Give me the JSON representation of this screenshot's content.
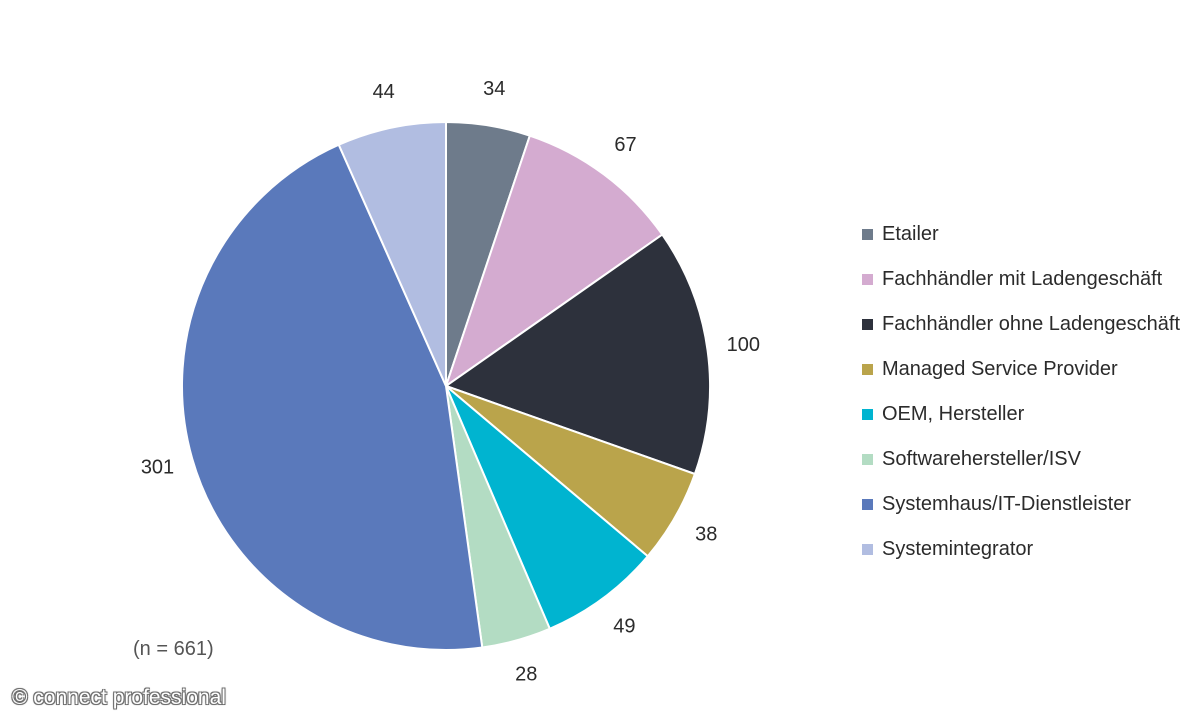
{
  "chart_data": {
    "type": "pie",
    "title": "",
    "categories": [
      "Etailer",
      "Fachhändler mit Ladengeschäft",
      "Fachhändler ohne Ladengeschäft",
      "Managed Service Provider",
      "OEM, Hersteller",
      "Softwarehersteller/ISV",
      "Systemhaus/IT-Dienstleister",
      "Systemintegrator"
    ],
    "values": [
      34,
      67,
      100,
      38,
      49,
      28,
      301,
      44
    ],
    "colors": [
      "#6e7b8b",
      "#d4abd0",
      "#2d313c",
      "#baa44b",
      "#00b4d0",
      "#b3dcc3",
      "#5a79bb",
      "#b1bde1"
    ],
    "legend_position": "right",
    "start_angle": "12 o'clock",
    "direction": "clockwise"
  },
  "note": "(n = 661)",
  "watermark": "© connect professional"
}
